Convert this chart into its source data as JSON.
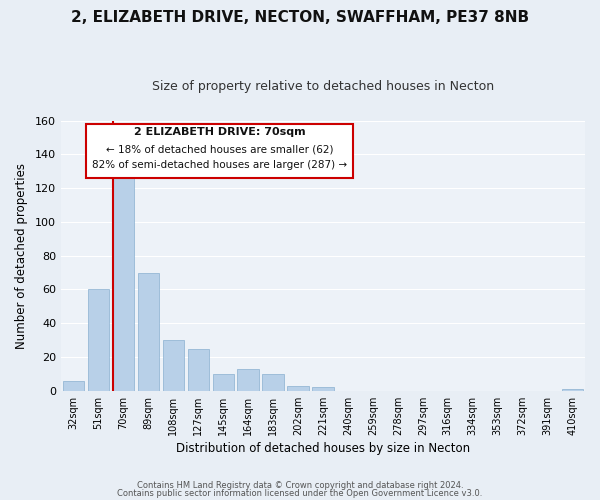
{
  "title": "2, ELIZABETH DRIVE, NECTON, SWAFFHAM, PE37 8NB",
  "subtitle": "Size of property relative to detached houses in Necton",
  "xlabel": "Distribution of detached houses by size in Necton",
  "ylabel": "Number of detached properties",
  "categories": [
    "32sqm",
    "51sqm",
    "70sqm",
    "89sqm",
    "108sqm",
    "127sqm",
    "145sqm",
    "164sqm",
    "183sqm",
    "202sqm",
    "221sqm",
    "240sqm",
    "259sqm",
    "278sqm",
    "297sqm",
    "316sqm",
    "334sqm",
    "353sqm",
    "372sqm",
    "391sqm",
    "410sqm"
  ],
  "values": [
    6,
    60,
    126,
    70,
    30,
    25,
    10,
    13,
    10,
    3,
    2,
    0,
    0,
    0,
    0,
    0,
    0,
    0,
    0,
    0,
    1
  ],
  "bar_color": "#b8d0e8",
  "highlight_index": 2,
  "highlight_color": "#cc0000",
  "ylim": [
    0,
    160
  ],
  "yticks": [
    0,
    20,
    40,
    60,
    80,
    100,
    120,
    140,
    160
  ],
  "annotation_title": "2 ELIZABETH DRIVE: 70sqm",
  "annotation_line1": "← 18% of detached houses are smaller (62)",
  "annotation_line2": "82% of semi-detached houses are larger (287) →",
  "footer1": "Contains HM Land Registry data © Crown copyright and database right 2024.",
  "footer2": "Contains public sector information licensed under the Open Government Licence v3.0.",
  "bg_color": "#e8eef5",
  "plot_bg_color": "#edf2f8",
  "grid_color": "#ffffff",
  "title_fontsize": 11,
  "subtitle_fontsize": 9
}
